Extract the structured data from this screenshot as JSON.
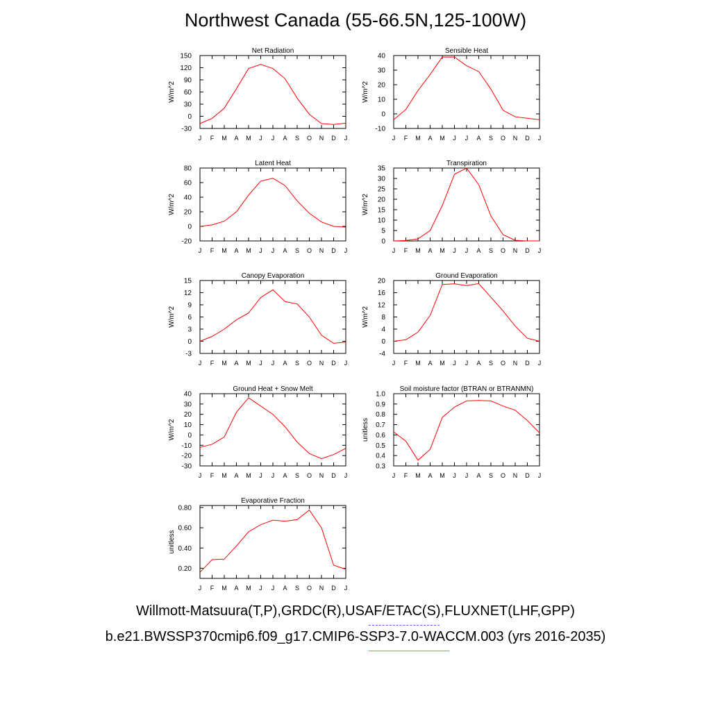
{
  "title": "Northwest Canada (55-66.5N,125-100W)",
  "footer": {
    "obs_line": "Willmott-Matsuura(T,P),GRDC(R),USAF/ETAC(S),FLUXNET(LHF,GPP)",
    "model_line": "b.e21.BWSSP370cmip6.f09_g17.CMIP6-SSP3-7.0-WACCM.003 (yrs 2016-2035)"
  },
  "colors": {
    "line": "#ff0000",
    "obs_legend": "#5a5aff",
    "model_legend": "#ff6a6a"
  },
  "chart_data": [
    {
      "type": "line",
      "title": "Net Radiation",
      "ylabel": "W/m^2",
      "categories": [
        "J",
        "F",
        "M",
        "A",
        "M",
        "J",
        "J",
        "A",
        "S",
        "O",
        "N",
        "D",
        "J"
      ],
      "ylim": [
        -30,
        150
      ],
      "yticks": [
        -30,
        0,
        30,
        60,
        90,
        120,
        150
      ],
      "ytick_labels": [
        "-30",
        "0",
        "30",
        "60",
        "90",
        "120",
        "150"
      ],
      "values": [
        -18,
        -5,
        20,
        68,
        118,
        128,
        118,
        93,
        45,
        5,
        -18,
        -20,
        -17
      ]
    },
    {
      "type": "line",
      "title": "Sensible Heat",
      "ylabel": "W/m^2",
      "categories": [
        "J",
        "F",
        "M",
        "A",
        "M",
        "J",
        "J",
        "A",
        "S",
        "O",
        "N",
        "D",
        "J"
      ],
      "ylim": [
        -10,
        40
      ],
      "yticks": [
        -10,
        0,
        10,
        20,
        30,
        40
      ],
      "ytick_labels": [
        "-10",
        "0",
        "10",
        "20",
        "30",
        "40"
      ],
      "values": [
        -4,
        3,
        16,
        27,
        39,
        39,
        33,
        29,
        17,
        2.5,
        -2,
        -3,
        -4
      ]
    },
    {
      "type": "line",
      "title": "Latent Heat",
      "ylabel": "W/m^2",
      "categories": [
        "J",
        "F",
        "M",
        "A",
        "M",
        "J",
        "J",
        "A",
        "S",
        "O",
        "N",
        "D",
        "J"
      ],
      "ylim": [
        -20,
        80
      ],
      "yticks": [
        -20,
        0,
        20,
        40,
        60,
        80
      ],
      "ytick_labels": [
        "-20",
        "0",
        "20",
        "40",
        "60",
        "80"
      ],
      "values": [
        0,
        2,
        7,
        20,
        43,
        62,
        66,
        56,
        35,
        18,
        6,
        0,
        -1
      ]
    },
    {
      "type": "line",
      "title": "Transpiration",
      "ylabel": "W/m^2",
      "categories": [
        "J",
        "F",
        "M",
        "A",
        "M",
        "J",
        "J",
        "A",
        "S",
        "O",
        "N",
        "D",
        "J"
      ],
      "ylim": [
        0,
        35
      ],
      "yticks": [
        0,
        5,
        10,
        15,
        20,
        25,
        30,
        35
      ],
      "ytick_labels": [
        "0",
        "5",
        "10",
        "15",
        "20",
        "25",
        "30",
        "35"
      ],
      "values": [
        0,
        0.2,
        1,
        5,
        17,
        32,
        35,
        27,
        12,
        3,
        0.3,
        0,
        0
      ]
    },
    {
      "type": "line",
      "title": "Canopy Evaporation",
      "ylabel": "W/m^2",
      "categories": [
        "J",
        "F",
        "M",
        "A",
        "M",
        "J",
        "J",
        "A",
        "S",
        "O",
        "N",
        "D",
        "J"
      ],
      "ylim": [
        -3,
        15
      ],
      "yticks": [
        -3,
        0,
        3,
        6,
        9,
        12,
        15
      ],
      "ytick_labels": [
        "-3",
        "0",
        "3",
        "6",
        "9",
        "12",
        "15"
      ],
      "values": [
        0,
        1.2,
        3,
        5.3,
        7,
        10.8,
        12.7,
        9.8,
        9.2,
        6,
        1.5,
        -0.5,
        -0.2
      ]
    },
    {
      "type": "line",
      "title": "Ground Evaporation",
      "ylabel": "W/m^2",
      "categories": [
        "J",
        "F",
        "M",
        "A",
        "M",
        "J",
        "J",
        "A",
        "S",
        "O",
        "N",
        "D",
        "J"
      ],
      "ylim": [
        -4,
        20
      ],
      "yticks": [
        -4,
        0,
        4,
        8,
        12,
        16,
        20
      ],
      "ytick_labels": [
        "-4",
        "0",
        "4",
        "8",
        "12",
        "16",
        "20"
      ],
      "values": [
        0,
        0.5,
        3,
        8.5,
        18.7,
        18.9,
        18.3,
        19,
        14.5,
        10,
        5,
        1,
        0
      ]
    },
    {
      "type": "line",
      "title": "Ground Heat + Snow Melt",
      "ylabel": "W/m^2",
      "categories": [
        "J",
        "F",
        "M",
        "A",
        "M",
        "J",
        "J",
        "A",
        "S",
        "O",
        "N",
        "D",
        "J"
      ],
      "ylim": [
        -30,
        40
      ],
      "yticks": [
        -30,
        -20,
        -10,
        0,
        10,
        20,
        30,
        40
      ],
      "ytick_labels": [
        "-30",
        "-20",
        "-10",
        "0",
        "10",
        "20",
        "30",
        "40"
      ],
      "values": [
        -12,
        -9,
        -2,
        22,
        36,
        28,
        20,
        8,
        -7,
        -18,
        -23,
        -19,
        -13
      ]
    },
    {
      "type": "line",
      "title": "Soil moisture factor (BTRAN or BTRANMN)",
      "ylabel": "unitless",
      "categories": [
        "J",
        "F",
        "M",
        "A",
        "M",
        "J",
        "J",
        "A",
        "S",
        "O",
        "N",
        "D",
        "J"
      ],
      "ylim": [
        0.3,
        1.0
      ],
      "yticks": [
        0.3,
        0.4,
        0.5,
        0.6,
        0.7,
        0.8,
        0.9,
        1.0
      ],
      "ytick_labels": [
        "0.3",
        "0.4",
        "0.5",
        "0.6",
        "0.7",
        "0.8",
        "0.9",
        "1.0"
      ],
      "values": [
        0.63,
        0.54,
        0.355,
        0.46,
        0.77,
        0.87,
        0.93,
        0.935,
        0.93,
        0.88,
        0.84,
        0.74,
        0.62
      ]
    },
    {
      "type": "line",
      "title": "Evaporative Fraction",
      "ylabel": "unitless",
      "categories": [
        "J",
        "F",
        "M",
        "A",
        "M",
        "J",
        "J",
        "A",
        "S",
        "O",
        "N",
        "D",
        "J"
      ],
      "ylim": [
        0.1,
        0.82
      ],
      "yticks": [
        0.2,
        0.4,
        0.6,
        0.8
      ],
      "ytick_labels": [
        "0.20",
        "0.40",
        "0.60",
        "0.80"
      ],
      "values": [
        0.16,
        0.285,
        0.29,
        0.42,
        0.56,
        0.63,
        0.675,
        0.665,
        0.68,
        0.775,
        0.6,
        0.23,
        0.19
      ]
    }
  ]
}
